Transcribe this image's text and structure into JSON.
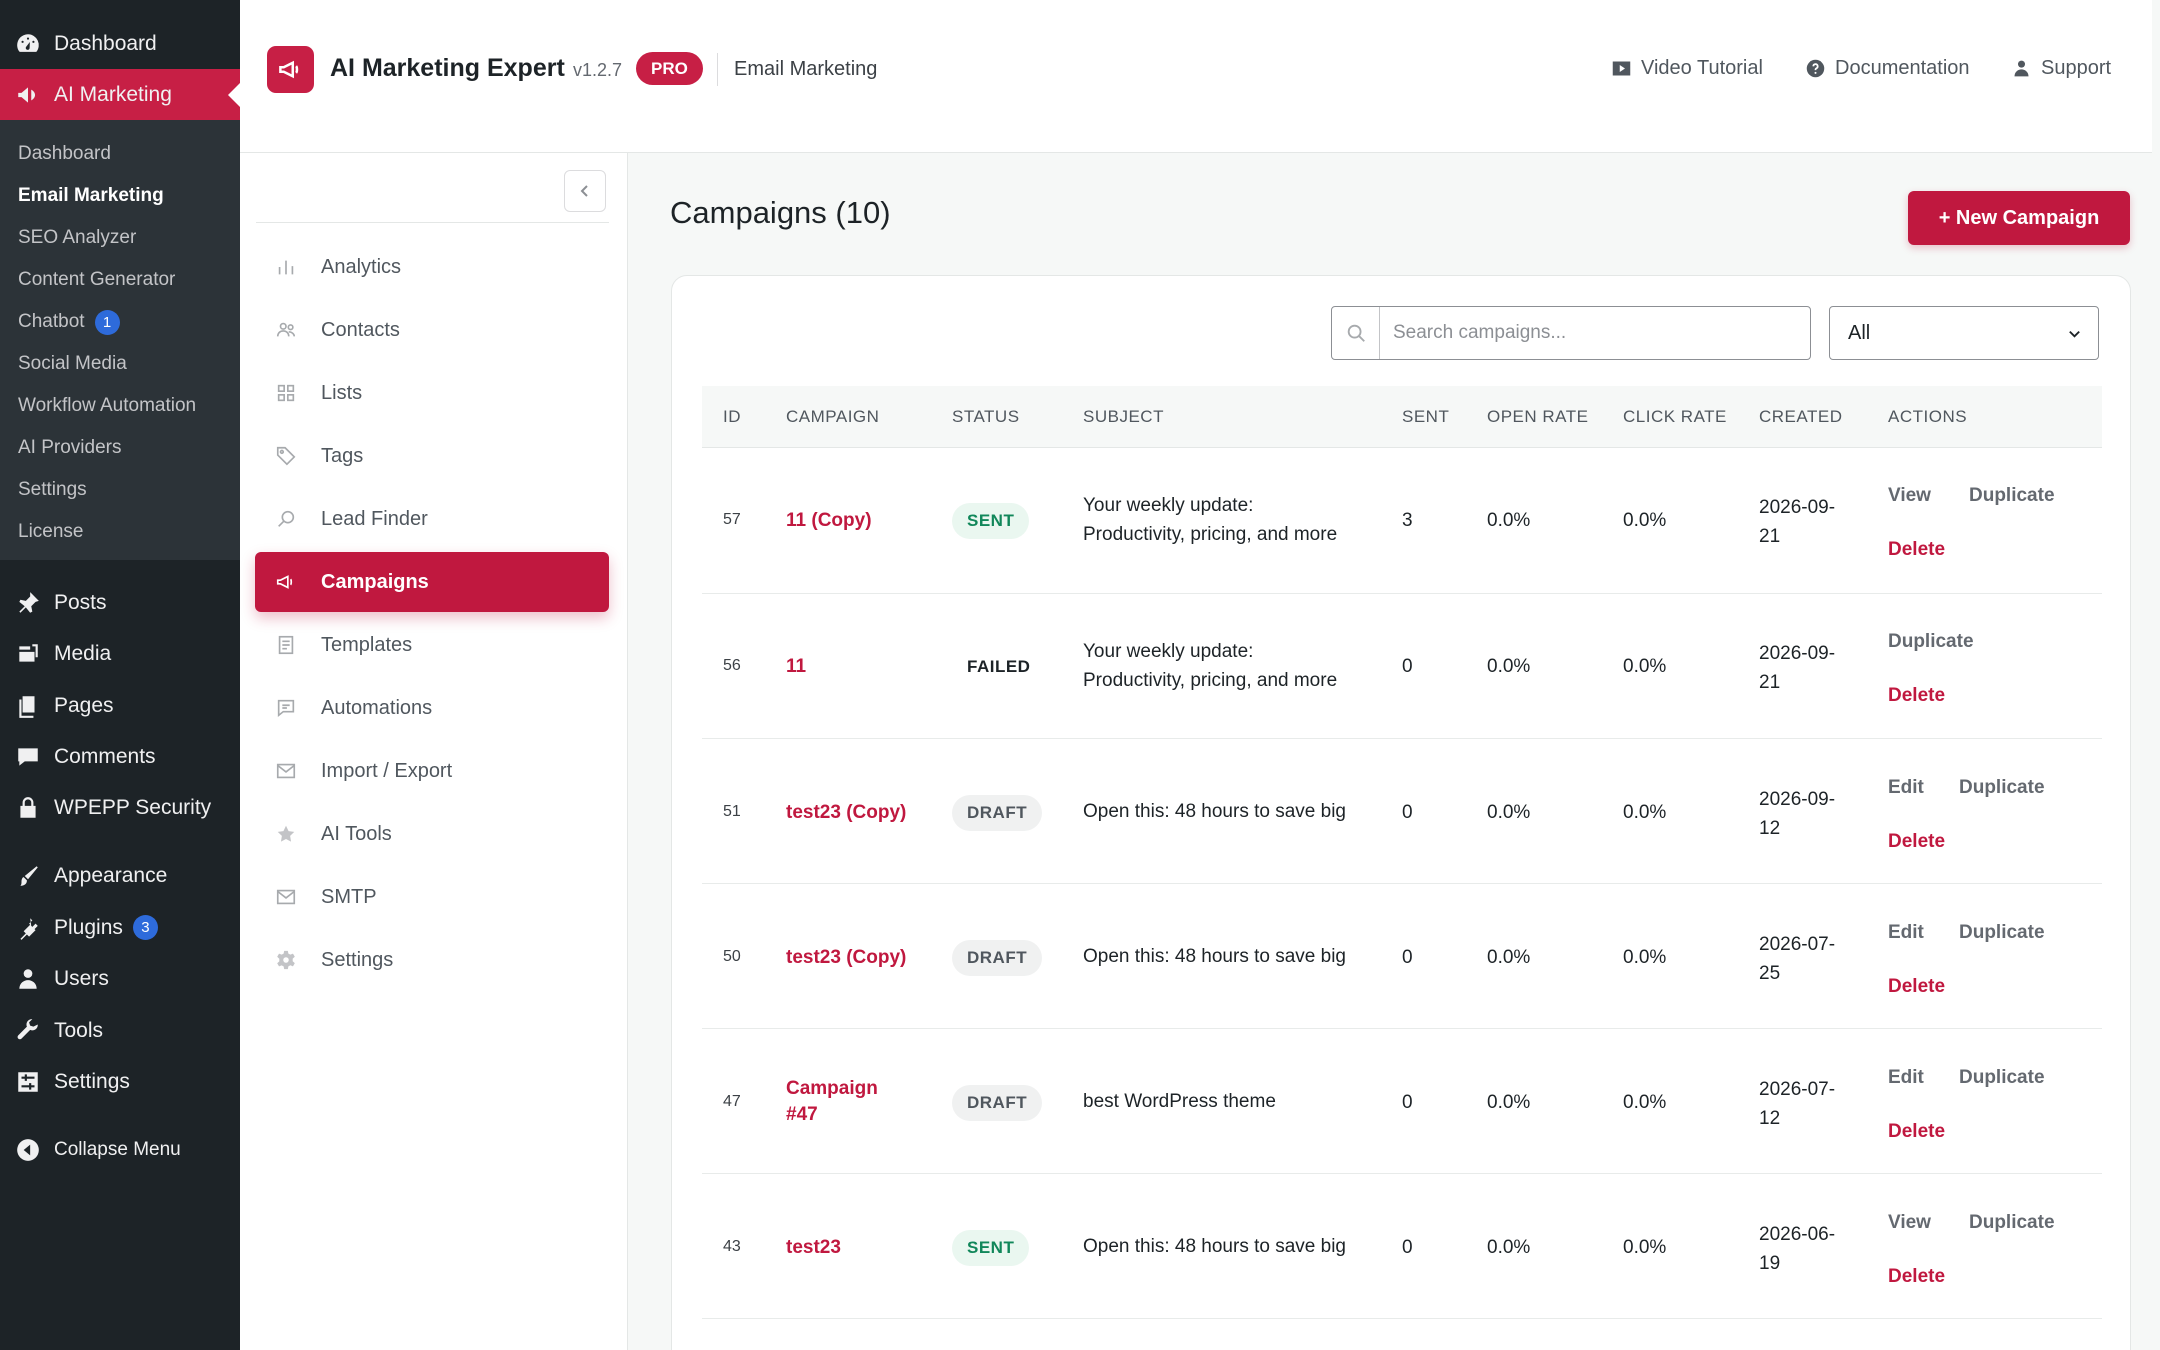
{
  "wp_menu": {
    "dashboard": "Dashboard",
    "ai_marketing": "AI Marketing",
    "submenu": [
      {
        "label": "Dashboard"
      },
      {
        "label": "Email Marketing"
      },
      {
        "label": "SEO Analyzer"
      },
      {
        "label": "Content Generator"
      },
      {
        "label": "Chatbot",
        "badge": "1"
      },
      {
        "label": "Social Media"
      },
      {
        "label": "Workflow Automation"
      },
      {
        "label": "AI Providers"
      },
      {
        "label": "Settings"
      },
      {
        "label": "License"
      }
    ],
    "posts": "Posts",
    "media": "Media",
    "pages": "Pages",
    "comments": "Comments",
    "security": "WPEPP Security",
    "appearance": "Appearance",
    "plugins": "Plugins",
    "plugins_badge": "3",
    "users": "Users",
    "tools": "Tools",
    "settings": "Settings",
    "collapse": "Collapse Menu"
  },
  "header": {
    "title": "AI Marketing Expert",
    "version": "v1.2.7",
    "badge": "PRO",
    "section": "Email Marketing",
    "links": {
      "video": "Video Tutorial",
      "docs": "Documentation",
      "support": "Support"
    }
  },
  "nav": {
    "items": [
      {
        "label": "Analytics"
      },
      {
        "label": "Contacts"
      },
      {
        "label": "Lists"
      },
      {
        "label": "Tags"
      },
      {
        "label": "Lead Finder"
      },
      {
        "label": "Campaigns"
      },
      {
        "label": "Templates"
      },
      {
        "label": "Automations"
      },
      {
        "label": "Import / Export"
      },
      {
        "label": "AI Tools"
      },
      {
        "label": "SMTP"
      },
      {
        "label": "Settings"
      }
    ]
  },
  "main": {
    "title": "Campaigns (10)",
    "new_button": "+ New Campaign",
    "search_placeholder": "Search campaigns...",
    "filter_value": "All",
    "columns": {
      "id": "ID",
      "campaign": "CAMPAIGN",
      "status": "STATUS",
      "subject": "SUBJECT",
      "sent": "SENT",
      "open_rate": "OPEN RATE",
      "click_rate": "CLICK RATE",
      "created": "CREATED",
      "actions": "ACTIONS"
    },
    "rows": [
      {
        "id": "57",
        "campaign": "11 (Copy)",
        "status": "SENT",
        "subject_1": "Your weekly update:",
        "subject_2": "Productivity, pricing, and more",
        "sent": "3",
        "open_rate": "0.0%",
        "click_rate": "0.0%",
        "created_1": "2026-09-",
        "created_2": "21",
        "action_1": "View",
        "action_2": "Duplicate",
        "delete": "Delete"
      },
      {
        "id": "56",
        "campaign": "11",
        "status": "FAILED",
        "subject_1": "Your weekly update:",
        "subject_2": "Productivity, pricing, and more",
        "sent": "0",
        "open_rate": "0.0%",
        "click_rate": "0.0%",
        "created_1": "2026-09-",
        "created_2": "21",
        "action_2": "Duplicate",
        "delete": "Delete"
      },
      {
        "id": "51",
        "campaign": "test23 (Copy)",
        "status": "DRAFT",
        "subject_1": "Open this: 48 hours to save big",
        "sent": "0",
        "open_rate": "0.0%",
        "click_rate": "0.0%",
        "created_1": "2026-09-",
        "created_2": "12",
        "action_1": "Edit",
        "action_2": "Duplicate",
        "delete": "Delete"
      },
      {
        "id": "50",
        "campaign": "test23 (Copy)",
        "status": "DRAFT",
        "subject_1": "Open this: 48 hours to save big",
        "sent": "0",
        "open_rate": "0.0%",
        "click_rate": "0.0%",
        "created_1": "2026-07-",
        "created_2": "25",
        "action_1": "Edit",
        "action_2": "Duplicate",
        "delete": "Delete"
      },
      {
        "id": "47",
        "campaign": "Campaign",
        "campaign_2": "#47",
        "status": "DRAFT",
        "subject_1": "best WordPress theme",
        "sent": "0",
        "open_rate": "0.0%",
        "click_rate": "0.0%",
        "created_1": "2026-07-",
        "created_2": "12",
        "action_1": "Edit",
        "action_2": "Duplicate",
        "delete": "Delete"
      },
      {
        "id": "43",
        "campaign": "test23",
        "status": "SENT",
        "subject_1": "Open this: 48 hours to save big",
        "sent": "0",
        "open_rate": "0.0%",
        "click_rate": "0.0%",
        "created_1": "2026-06-",
        "created_2": "19",
        "action_1": "View",
        "action_2": "Duplicate",
        "delete": "Delete"
      }
    ]
  },
  "colors": {
    "accent": "#c0183f",
    "wp_sidebar": "#1d2327",
    "sent_green": "#11875a"
  }
}
